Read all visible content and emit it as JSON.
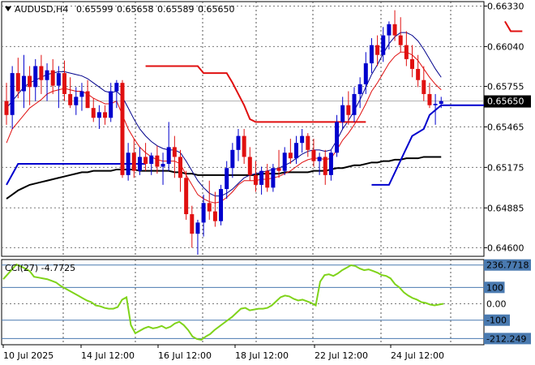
{
  "chart_data": [
    {
      "type": "candlestick",
      "symbol_label": "AUDUSD,H4",
      "ohlc_header": [
        "0.65599",
        "0.65658",
        "0.65589",
        "0.65650"
      ],
      "current_price_label": "0.65650",
      "current_price": 0.6565,
      "ylim": [
        0.6455,
        0.6635
      ],
      "y_ticks": [
        "0.66330",
        "0.66040",
        "0.65755",
        "0.65465",
        "0.65175",
        "0.64885",
        "0.64600"
      ],
      "x_tick_labels": [
        "10 Jul 2025",
        "14 Jul 12:00",
        "16 Jul 12:00",
        "18 Jul 12:00",
        "22 Jul 12:00",
        "24 Jul 12:00"
      ],
      "candles": [
        [
          0.6565,
          0.6578,
          0.6548,
          0.6555
        ],
        [
          0.6555,
          0.659,
          0.6545,
          0.6585
        ],
        [
          0.6585,
          0.6596,
          0.6567,
          0.6572
        ],
        [
          0.6572,
          0.6598,
          0.656,
          0.6583
        ],
        [
          0.6583,
          0.659,
          0.6562,
          0.6575
        ],
        [
          0.6575,
          0.6595,
          0.6565,
          0.659
        ],
        [
          0.659,
          0.6598,
          0.657,
          0.658
        ],
        [
          0.658,
          0.6592,
          0.6565,
          0.6587
        ],
        [
          0.6587,
          0.6595,
          0.657,
          0.6576
        ],
        [
          0.6576,
          0.659,
          0.656,
          0.6585
        ],
        [
          0.6585,
          0.6594,
          0.6565,
          0.657
        ],
        [
          0.657,
          0.6582,
          0.656,
          0.6562
        ],
        [
          0.6562,
          0.6575,
          0.6555,
          0.6568
        ],
        [
          0.6568,
          0.6578,
          0.6558,
          0.6572
        ],
        [
          0.6572,
          0.658,
          0.656,
          0.656
        ],
        [
          0.656,
          0.6567,
          0.655,
          0.6553
        ],
        [
          0.6553,
          0.6562,
          0.6545,
          0.6557
        ],
        [
          0.6557,
          0.6562,
          0.6548,
          0.6553
        ],
        [
          0.6553,
          0.6578,
          0.655,
          0.6572
        ],
        [
          0.6572,
          0.658,
          0.656,
          0.6578
        ],
        [
          0.6578,
          0.658,
          0.651,
          0.6512
        ],
        [
          0.6512,
          0.6535,
          0.6508,
          0.6528
        ],
        [
          0.6528,
          0.6538,
          0.651,
          0.6515
        ],
        [
          0.6515,
          0.6532,
          0.6512,
          0.6525
        ],
        [
          0.6525,
          0.6535,
          0.6515,
          0.652
        ],
        [
          0.652,
          0.6528,
          0.6512,
          0.6526
        ],
        [
          0.6526,
          0.6533,
          0.6513,
          0.6518
        ],
        [
          0.6518,
          0.6528,
          0.6505,
          0.652
        ],
        [
          0.652,
          0.655,
          0.6515,
          0.6532
        ],
        [
          0.6532,
          0.654,
          0.651,
          0.6525
        ],
        [
          0.6525,
          0.653,
          0.65,
          0.651
        ],
        [
          0.651,
          0.6515,
          0.648,
          0.6484
        ],
        [
          0.6484,
          0.649,
          0.646,
          0.647
        ],
        [
          0.647,
          0.648,
          0.6455,
          0.6478
        ],
        [
          0.6478,
          0.6498,
          0.6468,
          0.6492
        ],
        [
          0.6492,
          0.6508,
          0.648,
          0.6486
        ],
        [
          0.6486,
          0.65,
          0.6475,
          0.6479
        ],
        [
          0.6479,
          0.6505,
          0.6476,
          0.6502
        ],
        [
          0.6502,
          0.6522,
          0.6495,
          0.6517
        ],
        [
          0.6517,
          0.6535,
          0.651,
          0.653
        ],
        [
          0.653,
          0.6545,
          0.6522,
          0.654
        ],
        [
          0.654,
          0.6545,
          0.652,
          0.6525
        ],
        [
          0.6525,
          0.6532,
          0.6508,
          0.6512
        ],
        [
          0.6512,
          0.6522,
          0.65,
          0.6505
        ],
        [
          0.6505,
          0.6518,
          0.6498,
          0.6515
        ],
        [
          0.6515,
          0.652,
          0.65,
          0.6503
        ],
        [
          0.6503,
          0.652,
          0.65,
          0.6517
        ],
        [
          0.6517,
          0.653,
          0.651,
          0.6515
        ],
        [
          0.6515,
          0.6532,
          0.6512,
          0.6528
        ],
        [
          0.6528,
          0.6538,
          0.652,
          0.6524
        ],
        [
          0.6524,
          0.654,
          0.652,
          0.6535
        ],
        [
          0.6535,
          0.6545,
          0.6528,
          0.654
        ],
        [
          0.654,
          0.6542,
          0.6525,
          0.653
        ],
        [
          0.653,
          0.6538,
          0.6518,
          0.6522
        ],
        [
          0.6522,
          0.6528,
          0.6512,
          0.6525
        ],
        [
          0.6525,
          0.653,
          0.6505,
          0.6512
        ],
        [
          0.6512,
          0.653,
          0.6508,
          0.6528
        ],
        [
          0.6528,
          0.6555,
          0.6525,
          0.655
        ],
        [
          0.655,
          0.6568,
          0.6545,
          0.6562
        ],
        [
          0.6562,
          0.6572,
          0.6548,
          0.6555
        ],
        [
          0.6555,
          0.6575,
          0.655,
          0.657
        ],
        [
          0.657,
          0.6582,
          0.656,
          0.6577
        ],
        [
          0.6577,
          0.66,
          0.657,
          0.6592
        ],
        [
          0.6592,
          0.661,
          0.6585,
          0.6605
        ],
        [
          0.6605,
          0.6612,
          0.659,
          0.6598
        ],
        [
          0.6598,
          0.6618,
          0.6593,
          0.6612
        ],
        [
          0.6612,
          0.6622,
          0.6602,
          0.662
        ],
        [
          0.662,
          0.663,
          0.6608,
          0.6612
        ],
        [
          0.6612,
          0.6625,
          0.66,
          0.6605
        ],
        [
          0.6605,
          0.6615,
          0.659,
          0.6595
        ],
        [
          0.6595,
          0.6605,
          0.6582,
          0.6588
        ],
        [
          0.6588,
          0.6598,
          0.6575,
          0.658
        ],
        [
          0.658,
          0.659,
          0.6565,
          0.657
        ],
        [
          0.657,
          0.6578,
          0.656,
          0.6562
        ],
        [
          0.6562,
          0.657,
          0.6548,
          0.6563
        ],
        [
          0.6563,
          0.6568,
          0.656,
          0.6565
        ]
      ],
      "moving_average_black": [
        0.6495,
        0.6498,
        0.6501,
        0.6503,
        0.6505,
        0.6506,
        0.6507,
        0.6508,
        0.6509,
        0.651,
        0.6511,
        0.6512,
        0.6513,
        0.6514,
        0.6514,
        0.6515,
        0.6515,
        0.6515,
        0.6515,
        0.6516,
        0.6516,
        0.6516,
        0.6516,
        0.6515,
        0.6515,
        0.6515,
        0.6515,
        0.6515,
        0.6515,
        0.6514,
        0.6514,
        0.6513,
        0.6513,
        0.6512,
        0.6512,
        0.6512,
        0.6512,
        0.6512,
        0.6512,
        0.6512,
        0.6512,
        0.6512,
        0.6512,
        0.6512,
        0.6513,
        0.6513,
        0.6513,
        0.6513,
        0.6514,
        0.6514,
        0.6514,
        0.6514,
        0.6514,
        0.6515,
        0.6515,
        0.6515,
        0.6516,
        0.6517,
        0.6517,
        0.6518,
        0.6519,
        0.6519,
        0.652,
        0.6521,
        0.6521,
        0.6522,
        0.6522,
        0.6523,
        0.6523,
        0.6524,
        0.6524,
        0.6524,
        0.6525,
        0.6525,
        0.6525,
        0.6525
      ],
      "moving_average_red": [
        0.6535,
        0.6545,
        0.655,
        0.6555,
        0.656,
        0.6563,
        0.6566,
        0.657,
        0.6572,
        0.6573,
        0.6574,
        0.6573,
        0.6572,
        0.6572,
        0.657,
        0.6567,
        0.6565,
        0.6563,
        0.6563,
        0.6565,
        0.6555,
        0.6545,
        0.6538,
        0.6532,
        0.6528,
        0.6525,
        0.6523,
        0.6522,
        0.6522,
        0.6522,
        0.652,
        0.6512,
        0.6505,
        0.6498,
        0.6495,
        0.6493,
        0.6492,
        0.6493,
        0.6496,
        0.65,
        0.6505,
        0.6508,
        0.6508,
        0.6508,
        0.6509,
        0.6509,
        0.651,
        0.6511,
        0.6513,
        0.6515,
        0.6518,
        0.6521,
        0.6523,
        0.6524,
        0.6524,
        0.6523,
        0.6524,
        0.653,
        0.6537,
        0.6542,
        0.6548,
        0.6555,
        0.6563,
        0.6572,
        0.6578,
        0.6585,
        0.6592,
        0.6597,
        0.66,
        0.66,
        0.6598,
        0.6594,
        0.6588,
        0.6582,
        0.6577,
        0.6573
      ],
      "moving_average_blue": [
        0.656,
        0.6565,
        0.657,
        0.6575,
        0.6578,
        0.658,
        0.6582,
        0.6584,
        0.6585,
        0.6586,
        0.6586,
        0.6585,
        0.6584,
        0.6583,
        0.6581,
        0.6578,
        0.6575,
        0.6572,
        0.6571,
        0.6572,
        0.6568,
        0.656,
        0.6552,
        0.6545,
        0.654,
        0.6536,
        0.6533,
        0.6531,
        0.653,
        0.653,
        0.6528,
        0.6522,
        0.6515,
        0.6508,
        0.6503,
        0.6499,
        0.6497,
        0.6497,
        0.6499,
        0.6502,
        0.6506,
        0.651,
        0.6512,
        0.6513,
        0.6514,
        0.6515,
        0.6516,
        0.6517,
        0.6519,
        0.6521,
        0.6524,
        0.6527,
        0.6529,
        0.653,
        0.653,
        0.6529,
        0.653,
        0.6537,
        0.6545,
        0.6551,
        0.6558,
        0.6566,
        0.6575,
        0.6584,
        0.6591,
        0.6599,
        0.6606,
        0.6611,
        0.6614,
        0.6614,
        0.6612,
        0.6608,
        0.6602,
        0.6595,
        0.6588,
        0.6582
      ],
      "stop_red_upper": [
        [
          24,
          0.659
        ],
        [
          33,
          0.659
        ],
        [
          34,
          0.6585
        ],
        [
          38,
          0.6585
        ],
        [
          39,
          0.6578
        ],
        [
          40,
          0.657
        ],
        [
          41,
          0.6562
        ],
        [
          42,
          0.6552
        ],
        [
          43,
          0.655
        ],
        [
          62,
          0.655
        ],
        null,
        [
          86,
          0.6622
        ],
        [
          87,
          0.6615
        ],
        [
          89,
          0.6615
        ]
      ],
      "stop_blue_lower": [
        [
          0,
          0.6505
        ],
        [
          2,
          0.652
        ],
        [
          24,
          0.652
        ],
        null,
        [
          63,
          0.6505
        ],
        [
          66,
          0.6505
        ],
        [
          70,
          0.654
        ],
        [
          72,
          0.6545
        ],
        [
          73,
          0.6555
        ],
        [
          75,
          0.6562
        ],
        [
          78,
          0.6562
        ],
        [
          84,
          0.6562
        ]
      ],
      "stop_blue_lower_ylim_ref": "price"
    },
    {
      "type": "line",
      "indicator_label": "CCI(27) -4.7725",
      "ylim": [
        -240,
        260
      ],
      "y_ticks": [
        {
          "label": "236.7718",
          "value": 236.7718
        },
        {
          "label": "100",
          "value": 100
        },
        {
          "label": "0.00",
          "value": 0
        },
        {
          "label": "-100",
          "value": -100
        },
        {
          "label": "-212.249",
          "value": -212.249
        }
      ],
      "levels": [
        236.7718,
        100,
        -100,
        -212.249
      ],
      "values": [
        150,
        180,
        210,
        240,
        228,
        215,
        200,
        165,
        160,
        155,
        150,
        140,
        130,
        110,
        95,
        80,
        65,
        50,
        35,
        20,
        10,
        -10,
        -15,
        -25,
        -30,
        -30,
        -20,
        25,
        40,
        -130,
        -180,
        -165,
        -150,
        -140,
        -150,
        -145,
        -135,
        -150,
        -140,
        -120,
        -110,
        -130,
        -160,
        -200,
        -215,
        -220,
        -200,
        -185,
        -160,
        -140,
        -120,
        -100,
        -80,
        -55,
        -30,
        -25,
        -40,
        -35,
        -30,
        -30,
        -25,
        -10,
        15,
        40,
        50,
        45,
        30,
        20,
        25,
        15,
        5,
        -10,
        135,
        175,
        180,
        170,
        185,
        205,
        220,
        235,
        230,
        215,
        205,
        210,
        200,
        190,
        175,
        170,
        155,
        120,
        100,
        70,
        50,
        35,
        25,
        10,
        5,
        -5,
        -10,
        -5,
        0
      ]
    }
  ]
}
